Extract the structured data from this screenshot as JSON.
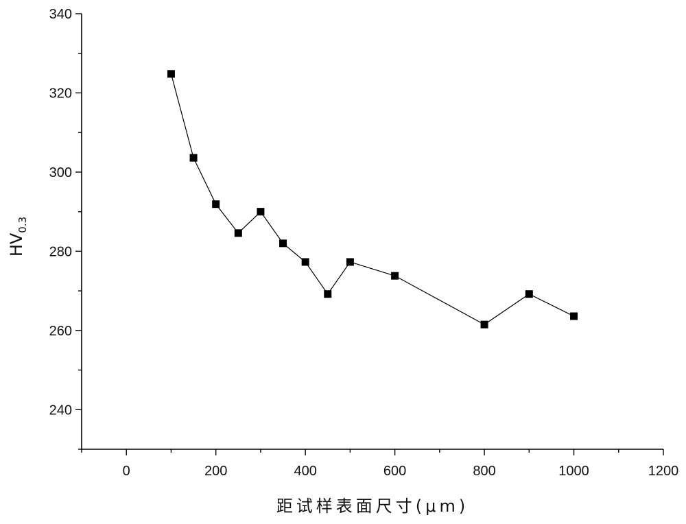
{
  "chart_data": {
    "type": "line",
    "markers": "square",
    "xlabel": "距试样表面尺寸(μm)",
    "ylabel_main": "HV",
    "ylabel_sub": "0.3",
    "xlim": [
      -100,
      1200
    ],
    "ylim": [
      230,
      340
    ],
    "x_ticks": [
      0,
      200,
      400,
      600,
      800,
      1000,
      1200
    ],
    "y_ticks": [
      240,
      260,
      280,
      300,
      320,
      340
    ],
    "grid": false,
    "legend": "none",
    "line_color": "#000000",
    "series": [
      {
        "x": [
          100,
          150,
          200,
          250,
          300,
          350,
          400,
          450,
          500,
          600,
          800,
          900,
          1000
        ],
        "y": [
          324.8,
          303.6,
          291.9,
          284.6,
          290.0,
          282.0,
          277.3,
          269.2,
          277.3,
          273.8,
          261.5,
          269.2,
          263.6
        ]
      }
    ]
  }
}
